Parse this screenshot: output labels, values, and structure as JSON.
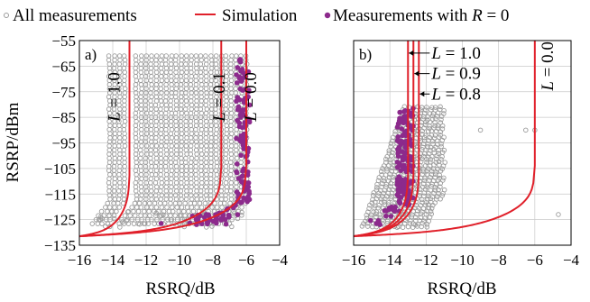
{
  "legend": {
    "all_label": "All measurements",
    "sim_label": "Simulation",
    "r0_label": "Measurements with",
    "r0_var": "R",
    "r0_eq": "= 0"
  },
  "colors": {
    "all": "#9b9b9b",
    "sim": "#e0202a",
    "r0": "#8c2a8c"
  },
  "chart_data": [
    {
      "type": "scatter",
      "panel_label": "a)",
      "xlabel": "RSRQ/dB",
      "ylabel": "RSRP/dBm",
      "xlim": [
        -16,
        -4
      ],
      "ylim": [
        -135,
        -55
      ],
      "xticks": [
        "−16",
        "−14",
        "−12",
        "−10",
        "−8",
        "−6",
        "−4"
      ],
      "yticks": [
        "−55",
        "−65",
        "−75",
        "−85",
        "−95",
        "−105",
        "−115",
        "−125",
        "−135"
      ],
      "grid": true,
      "curve_labels": [
        {
          "text": "L = 1.0",
          "x": -13.6,
          "y": -77
        },
        {
          "text": "L = 0.1",
          "x": -7.3,
          "y": -77
        },
        {
          "text": "L = 0.0",
          "x": -5.4,
          "y": -77
        }
      ],
      "series": [
        {
          "name": "Simulation L = 1.0",
          "kind": "curve",
          "asymptote": -13.0,
          "x_range": [
            -16,
            -12.95
          ]
        },
        {
          "name": "Simulation L = 0.1",
          "kind": "curve",
          "asymptote": -7.5,
          "x_range": [
            -16,
            -7.45
          ]
        },
        {
          "name": "Simulation L = 0.0",
          "kind": "curve",
          "asymptote": -6.0,
          "x_range": [
            -16,
            -5.95
          ]
        },
        {
          "name": "All measurements",
          "kind": "grey-scatter",
          "columns": [
            -14.2,
            -13.9,
            -13.6,
            -13.3,
            -12.6,
            -12.3,
            -12.0,
            -11.7,
            -11.4,
            -11.1,
            -10.8,
            -10.5,
            -10.2,
            -9.9,
            -9.6,
            -9.3,
            -9.0,
            -8.7,
            -8.4,
            -8.1,
            -7.8,
            -7.5,
            -7.2,
            -6.9,
            -6.6,
            -6.3,
            -6.0
          ],
          "y_range": [
            -128,
            -61
          ]
        },
        {
          "name": "Measurements with R = 0",
          "kind": "purple-scatter",
          "x_range": [
            -6.6,
            -5.8
          ],
          "y_range": [
            -127,
            -61
          ]
        }
      ]
    },
    {
      "type": "scatter",
      "panel_label": "b)",
      "xlabel": "RSRQ/dB",
      "ylabel": "",
      "xlim": [
        -16,
        -4
      ],
      "ylim": [
        -135,
        -55
      ],
      "xticks": [
        "−16",
        "−14",
        "−12",
        "−10",
        "−8",
        "−6",
        "−4"
      ],
      "yticks": [],
      "grid": true,
      "curve_labels": [
        {
          "text": "L = 1.0",
          "x": -11.7,
          "y": -62
        },
        {
          "text": "L = 0.9",
          "x": -11.7,
          "y": -70
        },
        {
          "text": "L = 0.8",
          "x": -11.7,
          "y": -78
        },
        {
          "text": "L = 0.0",
          "x": -5.0,
          "y": -65
        }
      ],
      "series": [
        {
          "name": "Simulation L = 1.0",
          "kind": "curve",
          "asymptote": -13.0,
          "x_range": [
            -16,
            -12.95
          ]
        },
        {
          "name": "Simulation L = 0.9",
          "kind": "curve",
          "asymptote": -12.7,
          "x_range": [
            -16,
            -12.65
          ]
        },
        {
          "name": "Simulation L = 0.8",
          "kind": "curve",
          "asymptote": -12.4,
          "x_range": [
            -16,
            -12.35
          ]
        },
        {
          "name": "Simulation L = 0.0",
          "kind": "curve",
          "asymptote": -6.0,
          "x_range": [
            -16,
            -5.95
          ]
        },
        {
          "name": "All measurements",
          "kind": "grey-scatter",
          "x_range": [
            -15.5,
            -11.0
          ],
          "y_range": [
            -128,
            -81
          ]
        },
        {
          "name": "Measurements with R = 0",
          "kind": "purple-scatter",
          "x_range": [
            -13.6,
            -12.7
          ],
          "y_range": [
            -127,
            -81
          ]
        },
        {
          "name": "All measurements outliers",
          "kind": "points",
          "points": [
            [
              -9,
              -90
            ],
            [
              -6.5,
              -90
            ],
            [
              -6,
              -90
            ],
            [
              -4.7,
              -123
            ],
            [
              -13.6,
              -128
            ],
            [
              -12.6,
              -127
            ]
          ]
        }
      ]
    }
  ]
}
